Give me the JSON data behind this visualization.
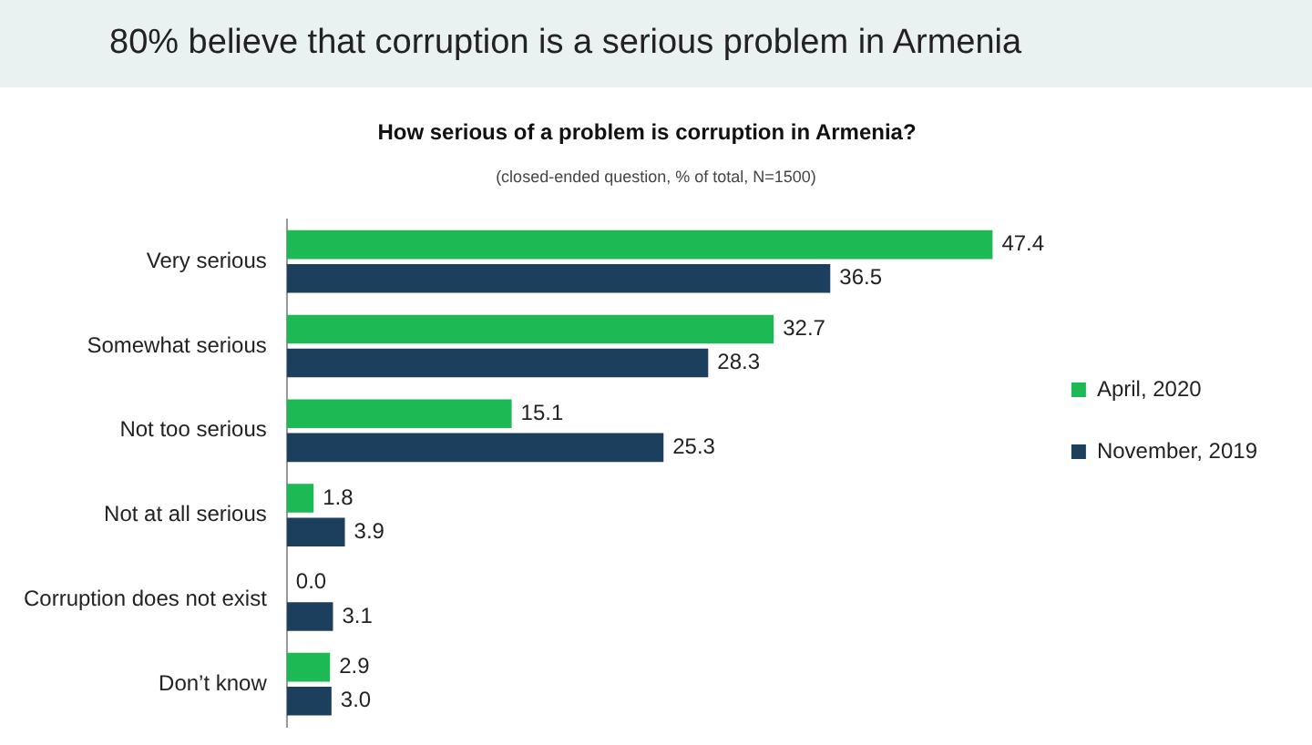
{
  "chart_data": {
    "type": "bar",
    "orientation": "horizontal",
    "title": "80% believe that corruption is a serious problem in Armenia",
    "subtitle": "How serious of a problem is corruption in Armenia?",
    "annotations": [
      "(closed-ended question, % of total, N=1500)"
    ],
    "categories": [
      "Very serious",
      "Somewhat serious",
      "Not too serious",
      "Not at all serious",
      "Corruption does not exist",
      "Don’t know"
    ],
    "series": [
      {
        "name": "April, 2020",
        "color": "#1db954",
        "values": [
          47.4,
          32.7,
          15.1,
          1.8,
          0.0,
          2.9
        ],
        "value_labels": [
          "47.4",
          "32.7",
          "15.1",
          "1.8",
          "0.0",
          "2.9"
        ]
      },
      {
        "name": "November, 2019",
        "color": "#1b3f5c",
        "values": [
          36.5,
          28.3,
          25.3,
          3.9,
          3.1,
          3.0
        ],
        "value_labels": [
          "36.5",
          "28.3",
          "25.3",
          "3.9",
          "3.1",
          "3.0"
        ]
      }
    ],
    "legend": "right",
    "grid": false
  }
}
